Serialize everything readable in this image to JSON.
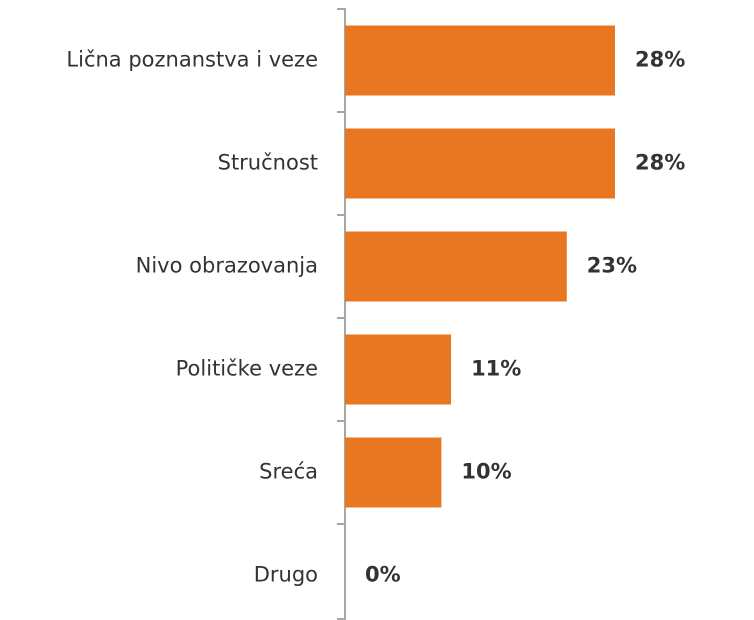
{
  "chart_data": {
    "type": "bar",
    "orientation": "horizontal",
    "categories": [
      "Lična poznanstva i veze",
      "Stručnost",
      "Nivo obrazovanja",
      "Političke veze",
      "Sreća",
      "Drugo"
    ],
    "values": [
      28,
      28,
      23,
      11,
      10,
      0
    ],
    "value_labels": [
      "28%",
      "28%",
      "23%",
      "11%",
      "10%",
      "0%"
    ],
    "color": "#e87722"
  }
}
